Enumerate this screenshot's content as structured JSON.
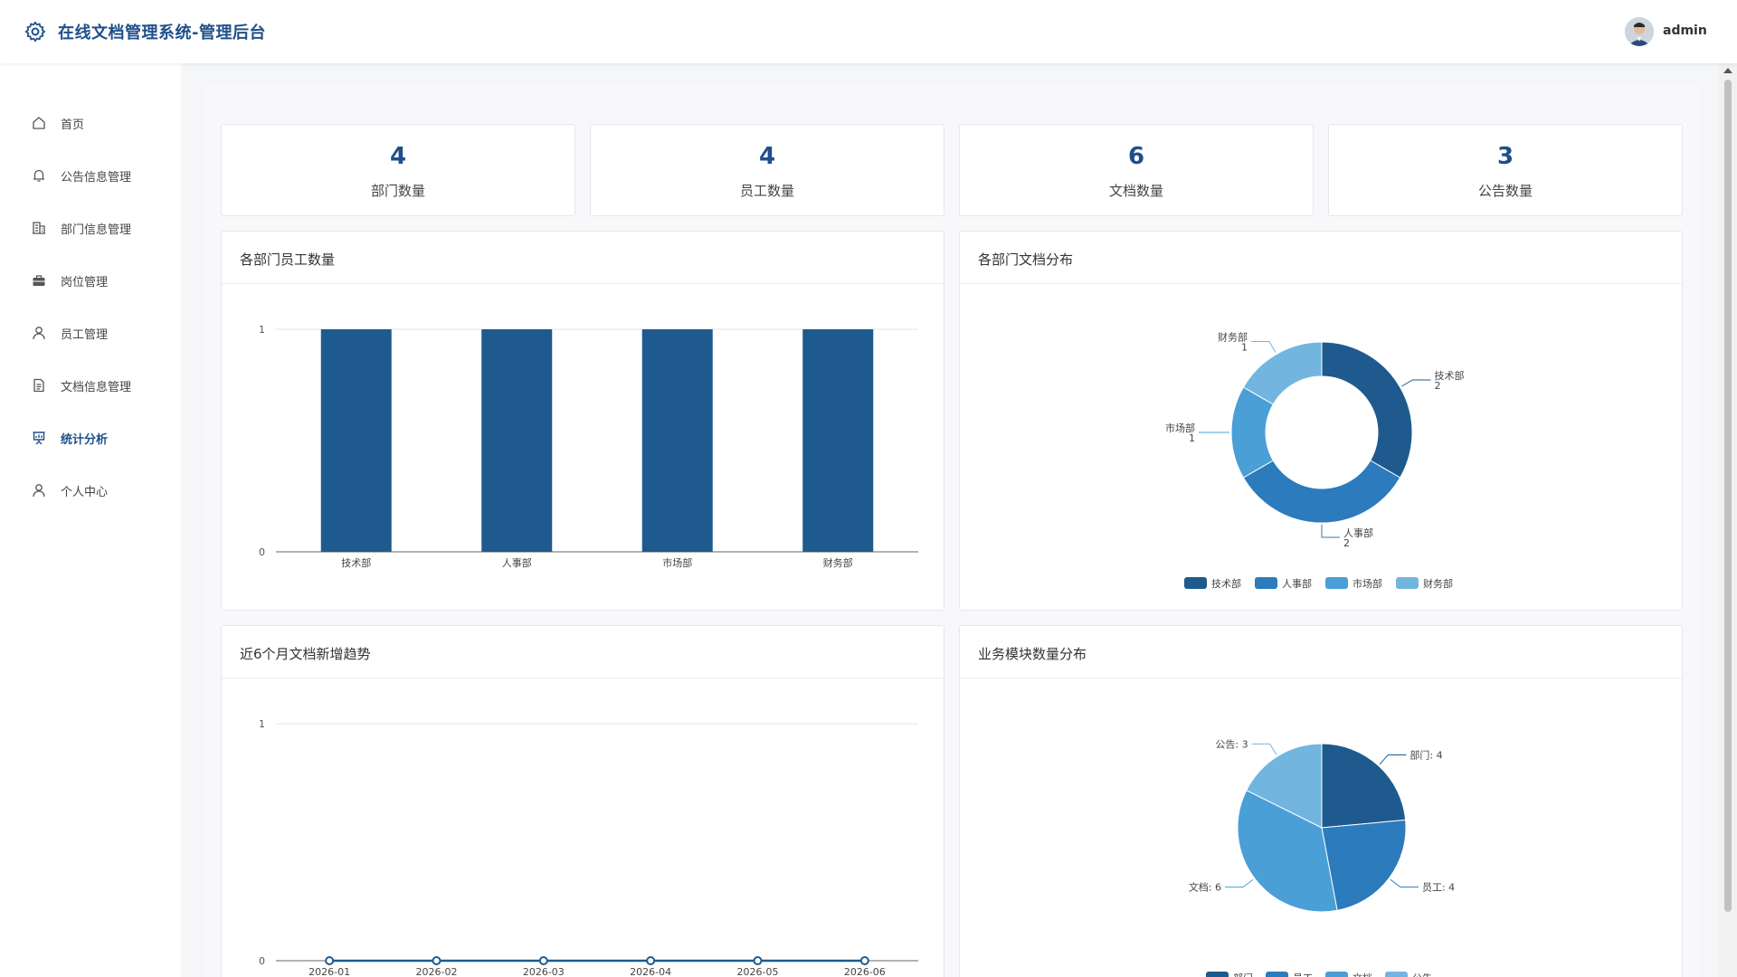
{
  "header": {
    "title": "在线文档管理系统-管理后台",
    "username": "admin",
    "logo_icon": "gear-icon"
  },
  "sidebar": {
    "items": [
      {
        "label": "首页",
        "icon": "home-icon"
      },
      {
        "label": "公告信息管理",
        "icon": "bell-icon"
      },
      {
        "label": "部门信息管理",
        "icon": "building-icon"
      },
      {
        "label": "岗位管理",
        "icon": "briefcase-icon"
      },
      {
        "label": "员工管理",
        "icon": "user-icon"
      },
      {
        "label": "文档信息管理",
        "icon": "document-icon"
      },
      {
        "label": "统计分析",
        "icon": "chart-icon",
        "active": true
      },
      {
        "label": "个人中心",
        "icon": "person-icon"
      }
    ]
  },
  "stats": [
    {
      "value": "4",
      "label": "部门数量"
    },
    {
      "value": "4",
      "label": "员工数量"
    },
    {
      "value": "6",
      "label": "文档数量"
    },
    {
      "value": "3",
      "label": "公告数量"
    }
  ],
  "panels": {
    "dept_employees": "各部门员工数量",
    "dept_documents": "各部门文档分布",
    "doc_trend": "近6个月文档新增趋势",
    "module_counts": "业务模块数量分布"
  },
  "colors": {
    "primary": "#1f4f8a",
    "series": [
      "#1e5a8e",
      "#2b7bbd",
      "#4a9fd6",
      "#72b6e0"
    ]
  },
  "chart_data": [
    {
      "type": "bar",
      "categories": [
        "技术部",
        "人事部",
        "市场部",
        "财务部"
      ],
      "values": [
        1,
        1,
        1,
        1
      ],
      "ylim": [
        0,
        1
      ],
      "yticks": [
        "0",
        "1"
      ],
      "grid": true
    },
    {
      "type": "pie",
      "donut": true,
      "labels": [
        "技术部",
        "人事部",
        "市场部",
        "财务部"
      ],
      "values": [
        2,
        2,
        1,
        1
      ],
      "legend": "bottom"
    },
    {
      "type": "line",
      "x": [
        "2026-01",
        "2026-02",
        "2026-03",
        "2026-04",
        "2026-05",
        "2026-06"
      ],
      "values": [
        0,
        0,
        0,
        0,
        0,
        0
      ],
      "ylim": [
        0,
        1
      ],
      "yticks": [
        "0",
        "1"
      ],
      "grid": true
    },
    {
      "type": "pie",
      "donut": false,
      "labels": [
        "部门",
        "员工",
        "文档",
        "公告"
      ],
      "values": [
        4,
        4,
        6,
        3
      ],
      "label_sep": ": ",
      "legend": "bottom"
    }
  ]
}
